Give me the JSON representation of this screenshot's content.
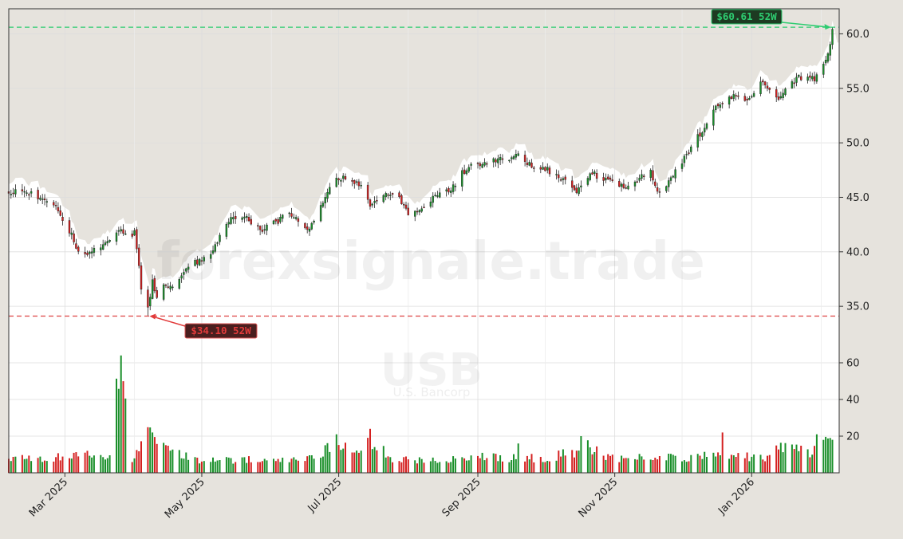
{
  "watermark": {
    "site": "forexsignale.trade",
    "ticker": "USB",
    "company": "U.S. Bancorp"
  },
  "annotations": {
    "high_label": "$60.61 52W",
    "low_label": "$34.10 52W"
  },
  "colors": {
    "up": "#1a8f2a",
    "down": "#d42020",
    "high_line": "#2ecc71",
    "low_line": "#e05555",
    "shade": "#e6e3dd",
    "grid": "#dddddd"
  },
  "chart_data": [
    {
      "type": "candlestick",
      "title": "",
      "x_tick_labels": [
        "Mar 2025",
        "May 2025",
        "Jul 2025",
        "Sep 2025",
        "Nov 2025",
        "Jan 2026"
      ],
      "x_tick_dates": [
        "2025-03-01",
        "2025-05-01",
        "2025-07-01",
        "2025-09-01",
        "2025-11-01",
        "2026-01-01"
      ],
      "x_range": [
        "2025-02-04",
        "2026-02-09"
      ],
      "ylim": [
        31.5,
        62.3
      ],
      "y_ticks": [
        35.0,
        40.0,
        45.0,
        50.0,
        55.0,
        60.0
      ],
      "y_tick_labels": [
        "35.0",
        "40.0",
        "45.0",
        "50.0",
        "55.0",
        "60.0"
      ],
      "y_axis_side": "right",
      "grid": true,
      "high_52w": 60.61,
      "low_52w": 34.1,
      "close_path": [
        [
          "2025-02-04",
          45.5
        ],
        [
          "2025-02-10",
          45.8
        ],
        [
          "2025-02-14",
          45.4
        ],
        [
          "2025-02-20",
          44.5
        ],
        [
          "2025-02-25",
          44.0
        ],
        [
          "2025-02-28",
          42.8
        ],
        [
          "2025-03-04",
          41.5
        ],
        [
          "2025-03-07",
          40.0
        ],
        [
          "2025-03-11",
          39.5
        ],
        [
          "2025-03-14",
          40.3
        ],
        [
          "2025-03-18",
          40.7
        ],
        [
          "2025-03-21",
          41.2
        ],
        [
          "2025-03-25",
          42.2
        ],
        [
          "2025-03-28",
          41.5
        ],
        [
          "2025-04-01",
          41.7
        ],
        [
          "2025-04-03",
          38.5
        ],
        [
          "2025-04-04",
          36.5
        ],
        [
          "2025-04-07",
          35.0
        ],
        [
          "2025-04-09",
          37.2
        ],
        [
          "2025-04-11",
          36.0
        ],
        [
          "2025-04-15",
          37.0
        ],
        [
          "2025-04-18",
          36.6
        ],
        [
          "2025-04-22",
          37.6
        ],
        [
          "2025-04-25",
          38.7
        ],
        [
          "2025-04-30",
          39.2
        ],
        [
          "2025-05-05",
          39.8
        ],
        [
          "2025-05-08",
          41.0
        ],
        [
          "2025-05-12",
          42.8
        ],
        [
          "2025-05-16",
          43.3
        ],
        [
          "2025-05-21",
          43.0
        ],
        [
          "2025-05-27",
          42.0
        ],
        [
          "2025-05-30",
          42.3
        ],
        [
          "2025-06-04",
          42.8
        ],
        [
          "2025-06-09",
          43.6
        ],
        [
          "2025-06-13",
          42.7
        ],
        [
          "2025-06-18",
          42.2
        ],
        [
          "2025-06-23",
          44.2
        ],
        [
          "2025-06-27",
          45.8
        ],
        [
          "2025-07-01",
          46.8
        ],
        [
          "2025-07-07",
          46.6
        ],
        [
          "2025-07-11",
          45.9
        ],
        [
          "2025-07-15",
          44.3
        ],
        [
          "2025-07-18",
          44.6
        ],
        [
          "2025-07-23",
          45.4
        ],
        [
          "2025-07-28",
          45.0
        ],
        [
          "2025-08-01",
          43.4
        ],
        [
          "2025-08-06",
          43.7
        ],
        [
          "2025-08-11",
          44.8
        ],
        [
          "2025-08-15",
          45.2
        ],
        [
          "2025-08-20",
          45.6
        ],
        [
          "2025-08-25",
          47.3
        ],
        [
          "2025-08-29",
          47.8
        ],
        [
          "2025-09-04",
          48.2
        ],
        [
          "2025-09-09",
          48.5
        ],
        [
          "2025-09-15",
          48.3
        ],
        [
          "2025-09-19",
          48.9
        ],
        [
          "2025-09-24",
          48.0
        ],
        [
          "2025-09-29",
          47.8
        ],
        [
          "2025-10-03",
          47.4
        ],
        [
          "2025-10-08",
          46.8
        ],
        [
          "2025-10-14",
          45.5
        ],
        [
          "2025-10-17",
          45.8
        ],
        [
          "2025-10-22",
          47.2
        ],
        [
          "2025-10-28",
          46.5
        ],
        [
          "2025-11-03",
          46.2
        ],
        [
          "2025-11-07",
          46.0
        ],
        [
          "2025-11-12",
          46.8
        ],
        [
          "2025-11-17",
          47.5
        ],
        [
          "2025-11-20",
          45.4
        ],
        [
          "2025-11-25",
          46.5
        ],
        [
          "2025-12-01",
          48.2
        ],
        [
          "2025-12-05",
          49.5
        ],
        [
          "2025-12-10",
          51.2
        ],
        [
          "2025-12-15",
          52.9
        ],
        [
          "2025-12-19",
          53.8
        ],
        [
          "2025-12-24",
          54.3
        ],
        [
          "2025-12-30",
          53.8
        ],
        [
          "2026-01-05",
          55.6
        ],
        [
          "2026-01-08",
          55.2
        ],
        [
          "2026-01-13",
          54.1
        ],
        [
          "2026-01-16",
          54.7
        ],
        [
          "2026-01-21",
          55.9
        ],
        [
          "2026-01-26",
          56.2
        ],
        [
          "2026-01-29",
          55.9
        ],
        [
          "2026-02-03",
          57.5
        ],
        [
          "2026-02-05",
          59.2
        ],
        [
          "2026-02-06",
          60.5
        ]
      ]
    },
    {
      "type": "bar",
      "series_role": "volume",
      "ylim": [
        0,
        70
      ],
      "y_ticks": [
        20,
        40,
        60
      ],
      "y_tick_labels": [
        "20",
        "40",
        "60"
      ],
      "grid": true,
      "volume_path": [
        [
          "2025-02-04",
          8
        ],
        [
          "2025-02-20",
          8
        ],
        [
          "2025-03-04",
          9
        ],
        [
          "2025-03-13",
          10
        ],
        [
          "2025-03-21",
          8
        ],
        [
          "2025-03-26",
          64
        ],
        [
          "2025-03-31",
          8
        ],
        [
          "2025-04-04",
          17
        ],
        [
          "2025-04-09",
          21
        ],
        [
          "2025-04-15",
          14
        ],
        [
          "2025-04-22",
          9
        ],
        [
          "2025-05-01",
          7
        ],
        [
          "2025-05-15",
          7
        ],
        [
          "2025-06-02",
          7
        ],
        [
          "2025-06-16",
          7
        ],
        [
          "2025-06-27",
          14
        ],
        [
          "2025-07-10",
          12
        ],
        [
          "2025-07-15",
          18
        ],
        [
          "2025-07-25",
          8
        ],
        [
          "2025-08-10",
          7
        ],
        [
          "2025-09-04",
          9
        ],
        [
          "2025-09-15",
          8
        ],
        [
          "2025-09-30",
          8
        ],
        [
          "2025-10-14",
          11
        ],
        [
          "2025-10-17",
          18
        ],
        [
          "2025-10-28",
          8
        ],
        [
          "2025-11-20",
          8
        ],
        [
          "2025-12-10",
          9
        ],
        [
          "2025-12-19",
          9
        ],
        [
          "2026-01-08",
          9
        ],
        [
          "2026-01-16",
          14
        ],
        [
          "2026-01-27",
          12
        ],
        [
          "2026-02-06",
          18
        ]
      ],
      "spikes": [
        [
          "2025-03-26",
          64
        ],
        [
          "2025-07-15",
          24
        ],
        [
          "2025-06-30",
          21
        ],
        [
          "2025-10-17",
          20
        ],
        [
          "2025-09-19",
          16
        ],
        [
          "2025-12-19",
          22
        ],
        [
          "2026-01-30",
          21
        ],
        [
          "2026-02-05",
          19
        ],
        [
          "2026-02-06",
          18
        ],
        [
          "2026-01-20",
          13
        ],
        [
          "2025-04-09",
          22
        ]
      ]
    }
  ]
}
